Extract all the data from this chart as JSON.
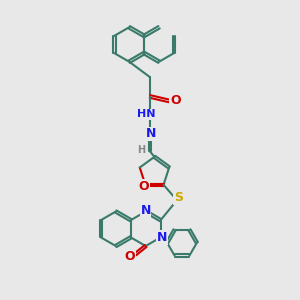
{
  "bg_color": "#e8e8e8",
  "bond_color": "#3a7a6a",
  "heteroatom_colors": {
    "O": "#cc0000",
    "N": "#1a1aee",
    "S": "#ccaa00",
    "H": "#888888"
  },
  "line_width": 1.5,
  "font_size": 9,
  "fig_size": [
    3.0,
    3.0
  ],
  "dpi": 100
}
